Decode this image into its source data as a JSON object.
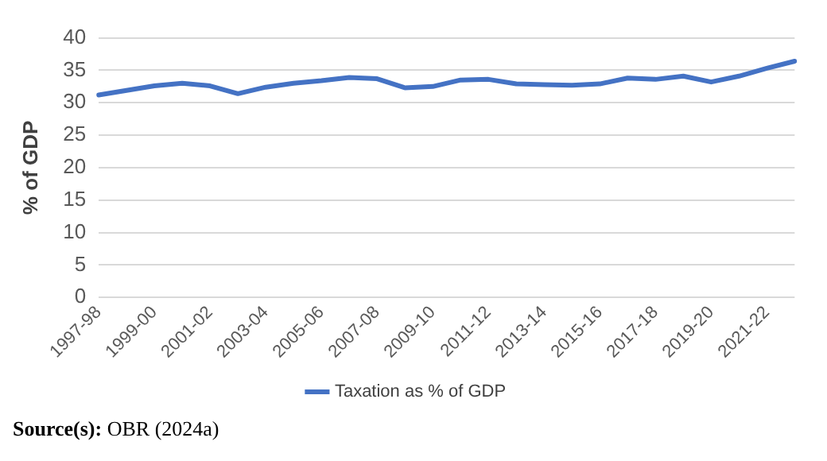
{
  "chart_data": {
    "type": "line",
    "ylabel": "% of GDP",
    "categories": [
      "1997-98",
      null,
      "1999-00",
      null,
      "2001-02",
      null,
      "2003-04",
      null,
      "2005-06",
      null,
      "2007-08",
      null,
      "2009-10",
      null,
      "2011-12",
      null,
      "2013-14",
      null,
      "2015-16",
      null,
      "2017-18",
      null,
      "2019-20",
      null,
      "2021-22",
      null
    ],
    "series": [
      {
        "name": "Taxation as % of GDP",
        "color": "#4472c4",
        "values": [
          31.2,
          31.9,
          32.6,
          33.0,
          32.6,
          31.4,
          32.4,
          33.0,
          33.4,
          33.9,
          33.7,
          32.3,
          32.5,
          33.5,
          33.6,
          32.9,
          32.8,
          32.7,
          32.9,
          33.8,
          33.6,
          34.1,
          33.2,
          34.1,
          35.3,
          36.4
        ]
      }
    ],
    "ylim": [
      0,
      40
    ],
    "yticks": [
      0,
      5,
      10,
      15,
      20,
      25,
      30,
      35,
      40
    ],
    "grid": "y",
    "legend": "bottom",
    "marker": "none",
    "line_style": "solid",
    "annotations": [
      "Source(s): OBR (2024a)"
    ]
  }
}
